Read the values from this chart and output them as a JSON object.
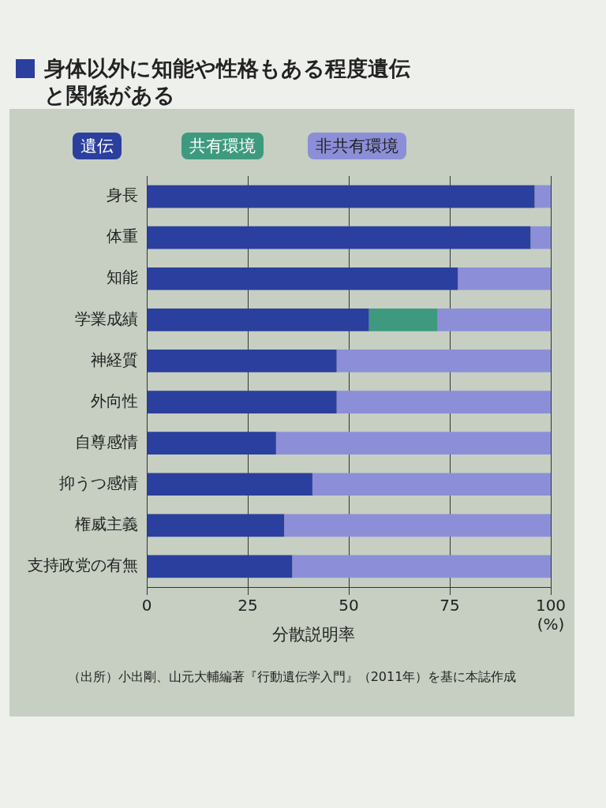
{
  "chart_data": {
    "type": "bar",
    "orientation": "horizontal",
    "stacked": true,
    "title": "身体以外に知能や性格もある程度遺伝と関係がある",
    "xlabel": "分散説明率",
    "categories": [
      "身長",
      "体重",
      "知能",
      "学業成績",
      "神経質",
      "外向性",
      "自尊感情",
      "抑うつ感情",
      "権威主義",
      "支持政党の有無"
    ],
    "series": [
      {
        "name": "遺伝",
        "color": "#2b3f9e",
        "values": [
          96,
          95,
          77,
          55,
          47,
          47,
          32,
          41,
          34,
          36
        ]
      },
      {
        "name": "共有環境",
        "color": "#3e9a7e",
        "values": [
          0,
          0,
          0,
          17,
          0,
          0,
          0,
          0,
          0,
          0
        ]
      },
      {
        "name": "非共有環境",
        "color": "#8c8fd8",
        "values": [
          4,
          5,
          23,
          28,
          53,
          53,
          68,
          59,
          66,
          64
        ]
      }
    ],
    "xlim": [
      0,
      100
    ],
    "xticks": [
      0,
      25,
      50,
      75,
      {
        "value": 100,
        "label": "100\n(%)"
      }
    ],
    "grid": "x",
    "legend": "top",
    "annotations": [
      "（出所）小出剛、山元大輔編著『行動遺伝学入門』（2011年）を基に本誌作成"
    ]
  }
}
